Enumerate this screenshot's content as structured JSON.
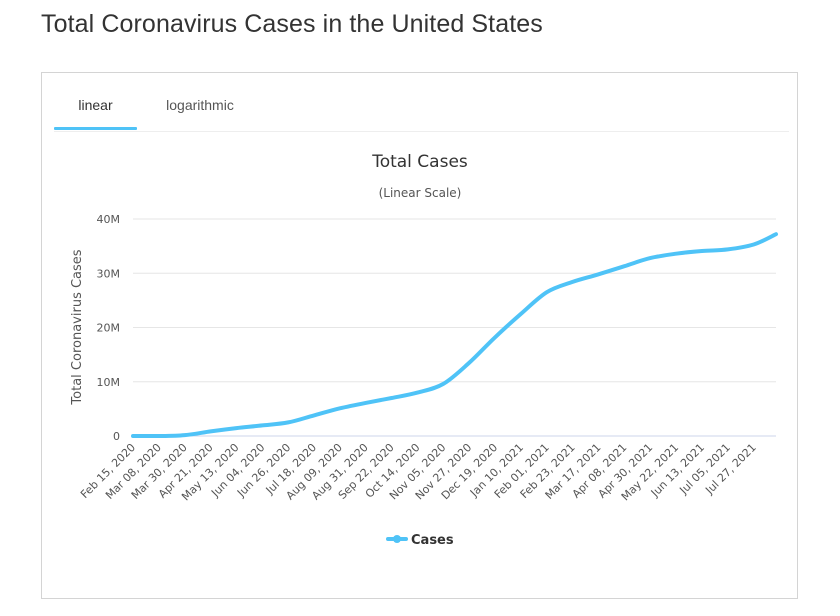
{
  "page": {
    "title": "Total Coronavirus Cases in the United States"
  },
  "tabs": [
    {
      "label": "linear",
      "active": true
    },
    {
      "label": "logarithmic",
      "active": false
    }
  ],
  "colors": {
    "series": "#4fc3f7",
    "accent": "#4fc3f7",
    "grid": "#e6e6e6",
    "text": "#333333"
  },
  "chart_data": {
    "type": "line",
    "title": "Total Cases",
    "subtitle": "(Linear Scale)",
    "ylabel": "Total Coronavirus Cases",
    "xlabel": "",
    "ylim": [
      0,
      40000000
    ],
    "yticks": [
      0,
      10000000,
      20000000,
      30000000,
      40000000
    ],
    "ytick_labels": [
      "0",
      "10M",
      "20M",
      "30M",
      "40M"
    ],
    "xtick_labels": [
      "Feb 15, 2020",
      "Mar 08, 2020",
      "Mar 30, 2020",
      "Apr 21, 2020",
      "May 13, 2020",
      "Jun 04, 2020",
      "Jun 26, 2020",
      "Jul 18, 2020",
      "Aug 09, 2020",
      "Aug 31, 2020",
      "Sep 22, 2020",
      "Oct 14, 2020",
      "Nov 05, 2020",
      "Nov 27, 2020",
      "Dec 19, 2020",
      "Jan 10, 2021",
      "Feb 01, 2021",
      "Feb 23, 2021",
      "Mar 17, 2021",
      "Apr 08, 2021",
      "Apr 30, 2021",
      "May 22, 2021",
      "Jun 13, 2021",
      "Jul 05, 2021",
      "Jul 27, 2021"
    ],
    "grid": true,
    "legend": "bottom-center",
    "series": [
      {
        "name": "Cases",
        "x": [
          "Feb 15, 2020",
          "Mar 08, 2020",
          "Mar 30, 2020",
          "Apr 21, 2020",
          "May 13, 2020",
          "Jun 04, 2020",
          "Jun 26, 2020",
          "Jul 18, 2020",
          "Aug 09, 2020",
          "Aug 31, 2020",
          "Sep 22, 2020",
          "Oct 14, 2020",
          "Nov 05, 2020",
          "Nov 27, 2020",
          "Dec 19, 2020",
          "Jan 10, 2021",
          "Feb 01, 2021",
          "Feb 23, 2021",
          "Mar 17, 2021",
          "Apr 08, 2021",
          "Apr 30, 2021",
          "May 22, 2021",
          "Jun 13, 2021",
          "Jul 05, 2021",
          "Jul 27, 2021",
          "Aug 15, 2021"
        ],
        "values": [
          15,
          500,
          160000,
          850000,
          1450000,
          1950000,
          2500000,
          3800000,
          5100000,
          6100000,
          7000000,
          8000000,
          9600000,
          13500000,
          18200000,
          22500000,
          26500000,
          28400000,
          29800000,
          31300000,
          32800000,
          33600000,
          34100000,
          34400000,
          35300000,
          37200000
        ]
      }
    ]
  }
}
